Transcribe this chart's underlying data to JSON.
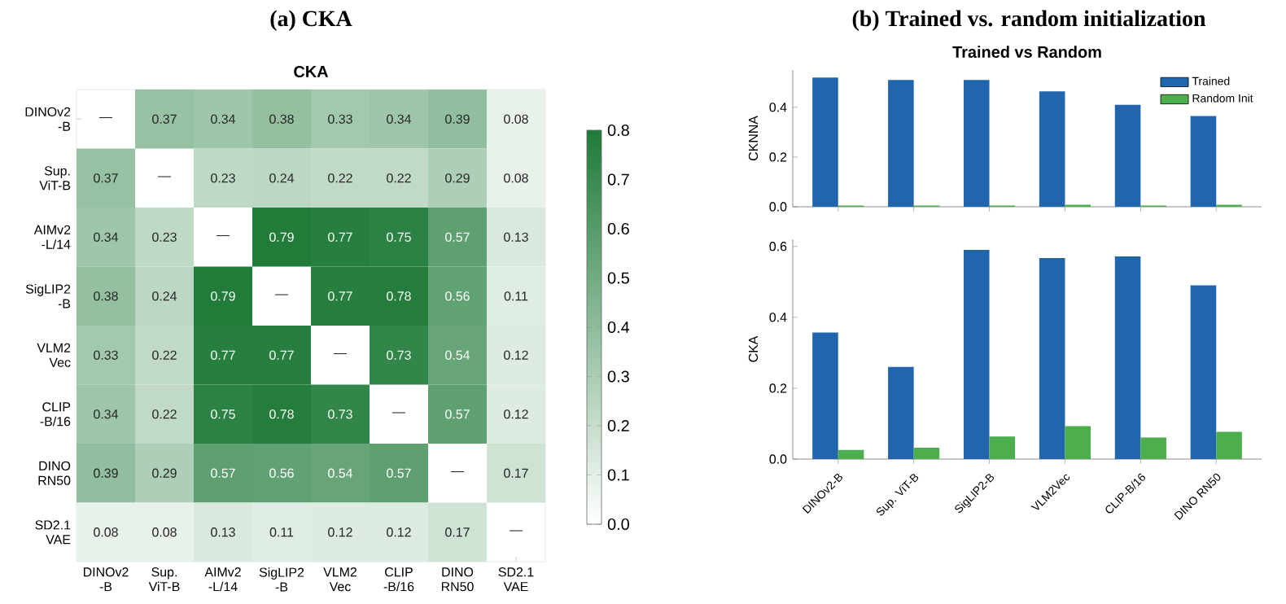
{
  "chart_data": [
    {
      "type": "heatmap",
      "title": "(a) CKA",
      "subtitle": "CKA",
      "categories": [
        "DINOv2 -B",
        "Sup. ViT-B",
        "AIMv2 -L/14",
        "SigLIP2 -B",
        "VLM2 Vec",
        "CLIP -B/16",
        "DINO RN50",
        "SD2.1 VAE"
      ],
      "y_categories": [
        "DINOv2 -B",
        "Sup. ViT-B",
        "AIMv2 -L/14",
        "SigLIP2 -B",
        "VLM2 Vec",
        "CLIP -B/16",
        "DINO RN50",
        "SD2.1 VAE"
      ],
      "cells": [
        [
          null,
          0.37,
          0.34,
          0.38,
          0.33,
          0.34,
          0.39,
          0.08
        ],
        [
          0.37,
          null,
          0.23,
          0.24,
          0.22,
          0.22,
          0.29,
          0.08
        ],
        [
          0.34,
          0.23,
          null,
          0.79,
          0.77,
          0.75,
          0.57,
          0.13
        ],
        [
          0.38,
          0.24,
          0.79,
          null,
          0.77,
          0.78,
          0.56,
          0.11
        ],
        [
          0.33,
          0.22,
          0.77,
          0.77,
          null,
          0.73,
          0.54,
          0.12
        ],
        [
          0.34,
          0.22,
          0.75,
          0.78,
          0.73,
          null,
          0.57,
          0.12
        ],
        [
          0.39,
          0.29,
          0.57,
          0.56,
          0.54,
          0.57,
          null,
          0.17
        ],
        [
          0.08,
          0.08,
          0.13,
          0.11,
          0.12,
          0.12,
          0.17,
          null
        ]
      ],
      "cell_labels": [
        [
          "—",
          "0.37",
          "0.34",
          "0.38",
          "0.33",
          "0.34",
          "0.39",
          "0.08"
        ],
        [
          "0.37",
          "—",
          "0.23",
          "0.24",
          "0.22",
          "0.22",
          "0.29",
          "0.08"
        ],
        [
          "0.34",
          "0.23",
          "—",
          "0.79",
          "0.77",
          "0.75",
          "0.57",
          "0.13"
        ],
        [
          "0.38",
          "0.24",
          "0.79",
          "—",
          "0.77",
          "0.78",
          "0.56",
          "0.11"
        ],
        [
          "0.33",
          "0.22",
          "0.77",
          "0.77",
          "—",
          "0.73",
          "0.54",
          "0.12"
        ],
        [
          "0.34",
          "0.22",
          "0.75",
          "0.78",
          "0.73",
          "—",
          "0.57",
          "0.12"
        ],
        [
          "0.39",
          "0.29",
          "0.57",
          "0.56",
          "0.54",
          "0.57",
          "—",
          "0.17"
        ],
        [
          "0.08",
          "0.08",
          "0.13",
          "0.11",
          "0.12",
          "0.12",
          "0.17",
          "—"
        ]
      ],
      "colors": [
        "#ffffff",
        "#1e7a38"
      ],
      "clim": [
        0,
        0.8
      ],
      "cticks": [
        {
          "value": 0,
          "label": "0.0"
        },
        {
          "value": 0.1,
          "label": "0.1"
        },
        {
          "value": 0.2,
          "label": "0.2"
        },
        {
          "value": 0.3,
          "label": "0.3"
        },
        {
          "value": 0.4,
          "label": "0.4"
        },
        {
          "value": 0.5,
          "label": "0.5"
        },
        {
          "value": 0.6,
          "label": "0.6"
        },
        {
          "value": 0.7,
          "label": "0.7"
        },
        {
          "value": 0.8,
          "label": "0.8"
        }
      ]
    },
    {
      "type": "bar",
      "title": "(b) Trained vs. random initialization",
      "subtitle": "Trained vs Random",
      "ylabel": "CKNNA",
      "categories": [
        null,
        null,
        null,
        null,
        null,
        null
      ],
      "series": [
        {
          "name": "Trained",
          "color": "#2166ac",
          "values": [
            0.52,
            0.51,
            0.51,
            0.464,
            0.41,
            0.365
          ]
        },
        {
          "name": "Random Init",
          "color": "#4cae4c",
          "values": [
            0.005,
            0.005,
            0.005,
            0.008,
            0.005,
            0.008
          ]
        }
      ],
      "ylim": [
        0,
        0.55
      ],
      "yticks": [
        {
          "value": 0,
          "label": "0.0"
        },
        {
          "value": 0.2,
          "label": "0.2"
        },
        {
          "value": 0.4,
          "label": "0.4"
        }
      ],
      "legend": "top right"
    },
    {
      "type": "bar",
      "ylabel": "CKA",
      "categories": [
        "DINOv2-B",
        "Sup. ViT-B",
        "SigLIP2-B",
        "VLM2Vec",
        "CLIP-B/16",
        "DINO RN50"
      ],
      "series": [
        {
          "color": "#2166ac",
          "values": [
            0.357,
            0.26,
            0.59,
            0.567,
            0.572,
            0.49
          ]
        },
        {
          "color": "#4cae4c",
          "values": [
            0.026,
            0.032,
            0.064,
            0.093,
            0.061,
            0.077
          ]
        }
      ],
      "ylim": [
        0,
        0.62
      ],
      "yticks": [
        {
          "value": 0,
          "label": "0.0"
        },
        {
          "value": 0.2,
          "label": "0.2"
        },
        {
          "value": 0.4,
          "label": "0.4"
        },
        {
          "value": 0.6,
          "label": "0.6"
        }
      ]
    }
  ]
}
